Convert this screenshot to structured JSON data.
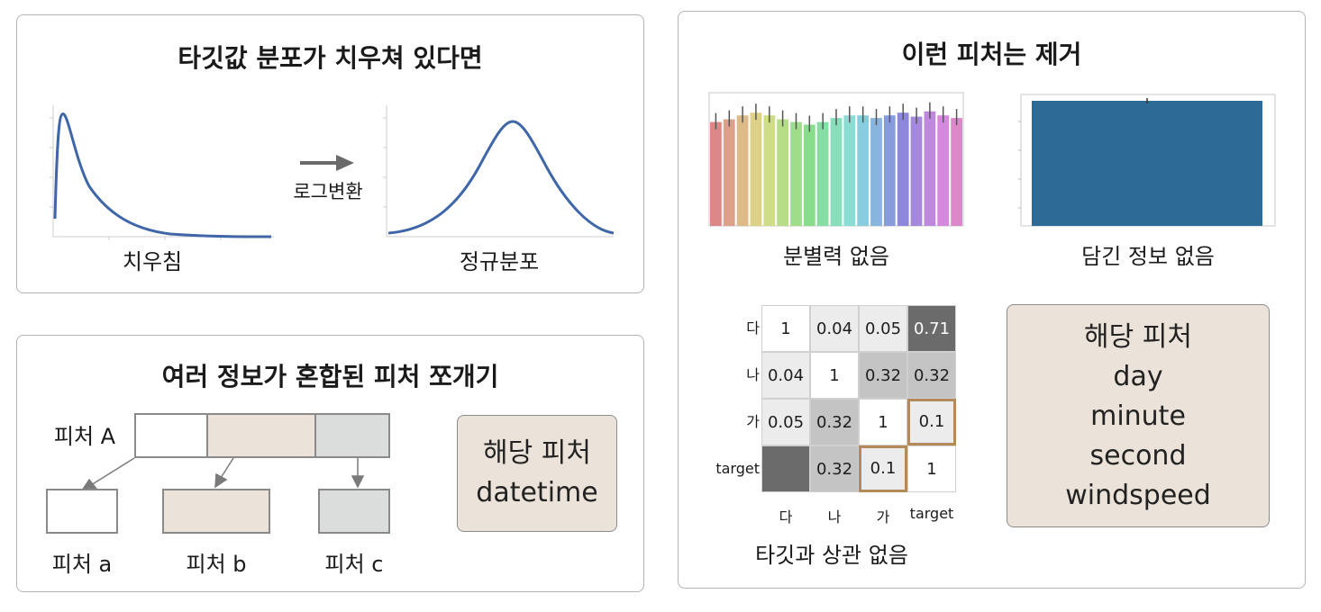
{
  "skew": {
    "title": "타깃값 분포가 치우쳐 있다면",
    "left_label": "치우침",
    "arrow_label": "로그변환",
    "right_label": "정규분포"
  },
  "split": {
    "title": "여러 정보가 혼합된 피처 쪼개기",
    "source_label": "피처 A",
    "sub_labels": [
      "피처 a",
      "피처 b",
      "피처 c"
    ],
    "note_lines": [
      "해당 피처",
      "datetime"
    ],
    "colors": {
      "white": "#ffffff",
      "beige": "#ebe3da",
      "gray": "#dbdcdc"
    }
  },
  "remove": {
    "title": "이런 피처는 제거",
    "chart1_caption": "분별력 없음",
    "chart2_caption": "담긴 정보 없음",
    "heatmap_caption": "타깃과 상관 없음",
    "note_lines": [
      "해당 피처",
      "day",
      "minute",
      "second",
      "windspeed"
    ],
    "bar_color": "#2e6a96",
    "highlight_color": "#b48a5a"
  },
  "chart_data": [
    {
      "type": "bar",
      "values": [
        0.78,
        0.8,
        0.83,
        0.85,
        0.83,
        0.8,
        0.78,
        0.76,
        0.78,
        0.81,
        0.83,
        0.83,
        0.81,
        0.83,
        0.85,
        0.82,
        0.86,
        0.83,
        0.81
      ],
      "ylim": [
        0,
        1
      ]
    },
    {
      "type": "bar",
      "values": [
        1.0
      ],
      "ylim": [
        0,
        1.05
      ]
    },
    {
      "type": "heatmap",
      "rows": [
        "다",
        "나",
        "가",
        "target"
      ],
      "cols": [
        "다",
        "나",
        "가",
        "target"
      ],
      "values": [
        [
          "1",
          "0.04",
          "0.05",
          "0.71"
        ],
        [
          "0.04",
          "1",
          "0.32",
          "0.32"
        ],
        [
          "0.05",
          "0.32",
          "1",
          "0.1"
        ],
        [
          "",
          "0.32",
          "0.1",
          "1"
        ]
      ]
    }
  ]
}
